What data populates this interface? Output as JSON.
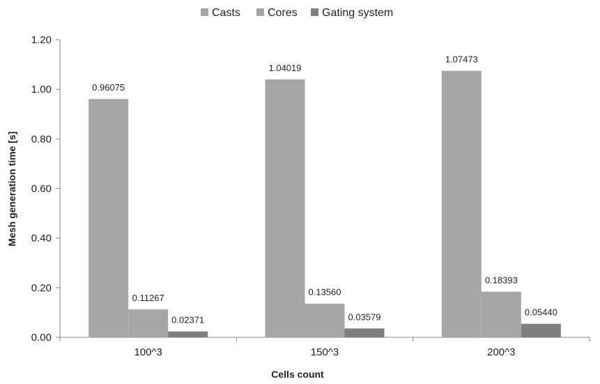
{
  "chart_data": {
    "type": "bar",
    "title": "",
    "xlabel": "Cells count",
    "ylabel": "Mesh generation time [s]",
    "categories": [
      "100^3",
      "150^3",
      "200^3"
    ],
    "series": [
      {
        "name": "Casts",
        "values": [
          0.96075,
          1.04019,
          1.07473
        ],
        "labels": [
          "0.96075",
          "1.04019",
          "1.07473"
        ],
        "color": "#a6a6a6"
      },
      {
        "name": "Cores",
        "values": [
          0.11267,
          0.1356,
          0.18393
        ],
        "labels": [
          "0.11267",
          "0.13560",
          "0.18393"
        ],
        "color": "#a6a6a6"
      },
      {
        "name": "Gating system",
        "values": [
          0.02371,
          0.03579,
          0.0544
        ],
        "labels": [
          "0.02371",
          "0.03579",
          "0.05440"
        ],
        "color": "#7f7f7f"
      }
    ],
    "ylim": [
      0,
      1.2
    ],
    "yticks": [
      "0.00",
      "0.20",
      "0.40",
      "0.60",
      "0.80",
      "1.00",
      "1.20"
    ],
    "grid": false,
    "legend_position": "top"
  }
}
